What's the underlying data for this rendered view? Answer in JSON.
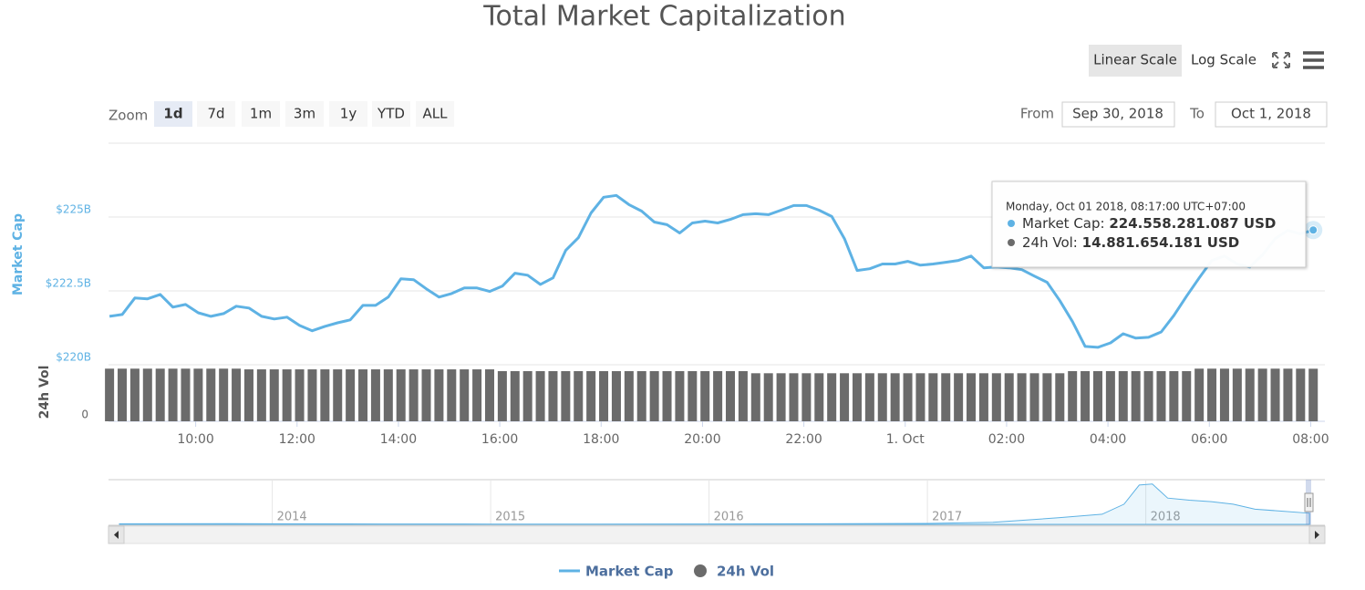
{
  "chart_data": {
    "type": "line",
    "title": "Total Market Capitalization",
    "scale_buttons": [
      "Linear Scale",
      "Log Scale"
    ],
    "log_scale": false,
    "zoom_label": "Zoom",
    "zoom_buttons": [
      "1d",
      "7d",
      "1m",
      "3m",
      "1y",
      "YTD",
      "ALL"
    ],
    "zoom_selected": 0,
    "from_label": "From",
    "from": "Sep 30, 2018",
    "to_label": "To",
    "to": "Oct 1, 2018",
    "x": [
      8.3,
      8.55,
      8.8,
      9.05,
      9.3,
      9.55,
      9.8,
      10.05,
      10.3,
      10.55,
      10.8,
      11.05,
      11.3,
      11.55,
      11.8,
      12.05,
      12.3,
      12.55,
      12.8,
      13.05,
      13.3,
      13.55,
      13.8,
      14.05,
      14.3,
      14.55,
      14.8,
      15.05,
      15.3,
      15.55,
      15.8,
      16.05,
      16.3,
      16.55,
      16.8,
      17.05,
      17.3,
      17.55,
      17.8,
      18.05,
      18.3,
      18.55,
      18.8,
      19.05,
      19.3,
      19.55,
      19.8,
      20.05,
      20.3,
      20.55,
      20.8,
      21.05,
      21.3,
      21.55,
      21.8,
      22.05,
      22.3,
      22.55,
      22.8,
      23.05,
      23.3,
      23.55,
      23.8,
      24.05,
      24.3,
      24.55,
      24.8,
      25.05,
      25.3,
      25.55,
      25.8,
      26.05,
      26.3,
      26.55,
      26.8,
      27.05,
      27.3,
      27.55,
      27.8,
      28.05,
      28.3,
      28.55,
      28.8,
      29.05,
      29.3,
      29.55,
      29.8,
      30.05,
      30.3,
      30.55,
      30.8,
      31.05,
      31.3,
      31.55,
      31.8,
      32.05
    ],
    "xlim": [
      8.28,
      32.28
    ],
    "xticks": [
      {
        "value": 10,
        "label": "10:00"
      },
      {
        "value": 12,
        "label": "12:00"
      },
      {
        "value": 14,
        "label": "14:00"
      },
      {
        "value": 16,
        "label": "16:00"
      },
      {
        "value": 18,
        "label": "18:00"
      },
      {
        "value": 20,
        "label": "20:00"
      },
      {
        "value": 22,
        "label": "22:00"
      },
      {
        "value": 24,
        "label": "1. Oct"
      },
      {
        "value": 26,
        "label": "02:00"
      },
      {
        "value": 28,
        "label": "04:00"
      },
      {
        "value": 30,
        "label": "06:00"
      },
      {
        "value": 32,
        "label": "08:00"
      }
    ],
    "ylim": [
      220,
      227.5
    ],
    "yticks": [
      {
        "value": 220,
        "label": "$220B"
      },
      {
        "value": 222.5,
        "label": "$222.5B"
      },
      {
        "value": 225,
        "label": "$225B"
      }
    ],
    "y_label": "Market Cap",
    "y2_label": "24h Vol",
    "y2lim": [
      0,
      16
    ],
    "y2ticks": [
      0
    ],
    "grid": true,
    "series": [
      {
        "name": "Market Cap",
        "color": "#5eb2e4",
        "values": [
          221.64,
          221.7,
          222.26,
          222.23,
          222.38,
          221.95,
          222.04,
          221.76,
          221.64,
          221.73,
          221.98,
          221.92,
          221.64,
          221.55,
          221.61,
          221.33,
          221.15,
          221.3,
          221.42,
          221.52,
          222.01,
          222.01,
          222.29,
          222.91,
          222.88,
          222.57,
          222.29,
          222.41,
          222.6,
          222.6,
          222.48,
          222.66,
          223.1,
          223.03,
          222.72,
          222.94,
          223.87,
          224.3,
          225.14,
          225.67,
          225.73,
          225.42,
          225.2,
          224.83,
          224.74,
          224.46,
          224.8,
          224.86,
          224.8,
          224.92,
          225.08,
          225.11,
          225.08,
          225.23,
          225.39,
          225.39,
          225.23,
          225.02,
          224.27,
          223.19,
          223.25,
          223.41,
          223.41,
          223.5,
          223.37,
          223.41,
          223.47,
          223.53,
          223.68,
          223.28,
          223.31,
          223.28,
          223.22,
          223.0,
          222.79,
          222.17,
          221.46,
          220.62,
          220.59,
          220.74,
          221.05,
          220.9,
          220.93,
          221.11,
          221.67,
          222.32,
          222.94,
          223.53,
          223.68,
          223.41,
          223.31,
          223.72,
          224.27,
          224.55,
          224.43,
          224.56
        ]
      },
      {
        "name": "24h Vol",
        "color": "#6b6b6b",
        "axis": "y2",
        "values": [
          14.9,
          14.9,
          14.9,
          14.9,
          14.9,
          14.9,
          14.9,
          14.9,
          14.9,
          14.9,
          14.9,
          14.7,
          14.7,
          14.7,
          14.7,
          14.7,
          14.7,
          14.7,
          14.7,
          14.7,
          14.7,
          14.7,
          14.7,
          14.7,
          14.7,
          14.7,
          14.7,
          14.7,
          14.7,
          14.7,
          14.7,
          14.2,
          14.2,
          14.2,
          14.2,
          14.2,
          14.2,
          14.2,
          14.2,
          14.2,
          14.2,
          14.2,
          14.2,
          14.2,
          14.2,
          14.2,
          14.2,
          14.2,
          14.2,
          14.2,
          14.2,
          13.6,
          13.6,
          13.6,
          13.6,
          13.6,
          13.6,
          13.6,
          13.6,
          13.6,
          13.6,
          13.6,
          13.6,
          13.6,
          13.6,
          13.6,
          13.6,
          13.6,
          13.6,
          13.6,
          13.6,
          13.6,
          13.6,
          13.6,
          13.6,
          13.6,
          14.2,
          14.2,
          14.2,
          14.2,
          14.2,
          14.2,
          14.2,
          14.2,
          14.2,
          14.2,
          14.9,
          14.9,
          14.9,
          14.9,
          14.9,
          14.9,
          14.9,
          14.9,
          14.9,
          14.88
        ]
      }
    ],
    "tooltip": {
      "date": "Monday, Oct 01 2018, 08:17:00 UTC+07:00",
      "rows": [
        {
          "label": "Market Cap:",
          "value": "224.558.281.087 USD"
        },
        {
          "label": "24h Vol:",
          "value": "14.881.654.181 USD"
        }
      ]
    },
    "navigator": {
      "x": [
        2013.3,
        2013.8,
        2014,
        2014.5,
        2015,
        2015.5,
        2016,
        2016.5,
        2017,
        2017.3,
        2017.6,
        2017.8,
        2017.9,
        2017.97,
        2018.03,
        2018.1,
        2018.2,
        2018.3,
        2018.4,
        2018.5,
        2018.6,
        2018.75
      ],
      "values": [
        10,
        12,
        10,
        7,
        5,
        5,
        7,
        10,
        18,
        40,
        130,
        200,
        400,
        780,
        800,
        520,
        480,
        450,
        400,
        300,
        270,
        220
      ],
      "xlim": [
        2013.25,
        2018.82
      ],
      "ylim": [
        0,
        850
      ],
      "xticks": [
        2014,
        2015,
        2016,
        2017,
        2018
      ]
    }
  }
}
